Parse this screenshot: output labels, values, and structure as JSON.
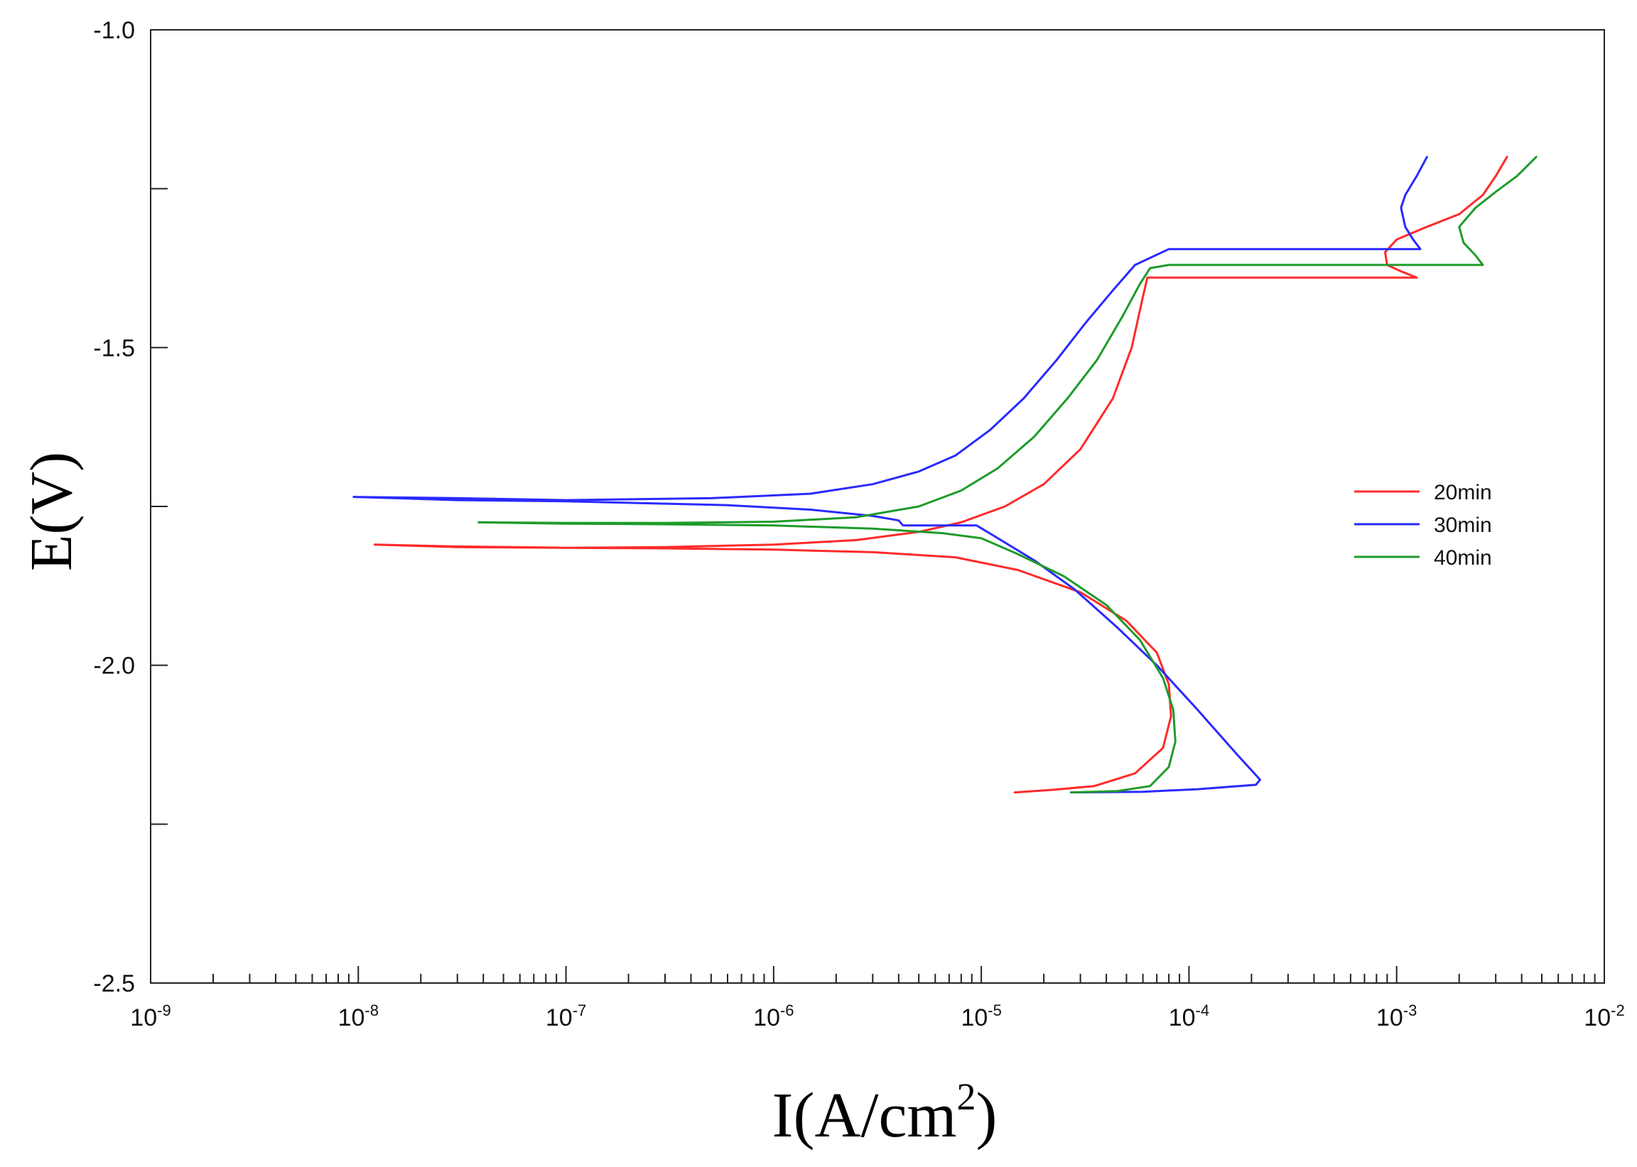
{
  "chart_data": {
    "type": "line",
    "xscale": "log",
    "xlim": [
      1e-09,
      0.01
    ],
    "ylim": [
      -2.5,
      -1.0
    ],
    "xlabel": {
      "main": "I(A/cm",
      "sup": "2",
      "close": ")"
    },
    "ylabel": "E(V)",
    "xticks": [
      {
        "value": 1e-09,
        "base": "10",
        "exp": "-9"
      },
      {
        "value": 1e-08,
        "base": "10",
        "exp": "-8"
      },
      {
        "value": 1e-07,
        "base": "10",
        "exp": "-7"
      },
      {
        "value": 1e-06,
        "base": "10",
        "exp": "-6"
      },
      {
        "value": 1e-05,
        "base": "10",
        "exp": "-5"
      },
      {
        "value": 0.0001,
        "base": "10",
        "exp": "-4"
      },
      {
        "value": 0.001,
        "base": "10",
        "exp": "-3"
      },
      {
        "value": 0.01,
        "base": "10",
        "exp": "-2"
      }
    ],
    "yticks": [
      {
        "value": -1.0,
        "label": "-1.0"
      },
      {
        "value": -1.25,
        "label": ""
      },
      {
        "value": -1.5,
        "label": "-1.5"
      },
      {
        "value": -1.75,
        "label": ""
      },
      {
        "value": -2.0,
        "label": "-2.0"
      },
      {
        "value": -2.25,
        "label": ""
      },
      {
        "value": -2.5,
        "label": "-2.5"
      }
    ],
    "grid": false,
    "legend_position": "right",
    "series": [
      {
        "name": "20min",
        "color": "#ff2a2a",
        "points": [
          [
            1.45e-05,
            -2.2
          ],
          [
            2.2e-05,
            -2.196
          ],
          [
            3.5e-05,
            -2.19
          ],
          [
            5.5e-05,
            -2.17
          ],
          [
            7.5e-05,
            -2.13
          ],
          [
            8.2e-05,
            -2.08
          ],
          [
            8e-05,
            -2.03
          ],
          [
            7e-05,
            -1.98
          ],
          [
            5e-05,
            -1.93
          ],
          [
            3e-05,
            -1.885
          ],
          [
            1.5e-05,
            -1.85
          ],
          [
            7.5e-06,
            -1.83
          ],
          [
            3e-06,
            -1.822
          ],
          [
            1e-06,
            -1.818
          ],
          [
            3e-07,
            -1.816
          ],
          [
            1e-07,
            -1.815
          ],
          [
            3e-08,
            -1.814
          ],
          [
            1.2e-08,
            -1.81
          ],
          [
            3e-08,
            -1.813
          ],
          [
            1e-07,
            -1.815
          ],
          [
            3e-07,
            -1.814
          ],
          [
            1e-06,
            -1.81
          ],
          [
            2.5e-06,
            -1.803
          ],
          [
            5e-06,
            -1.79
          ],
          [
            8e-06,
            -1.775
          ],
          [
            1.3e-05,
            -1.75
          ],
          [
            2e-05,
            -1.715
          ],
          [
            3e-05,
            -1.66
          ],
          [
            4.3e-05,
            -1.58
          ],
          [
            5.3e-05,
            -1.5
          ],
          [
            6e-05,
            -1.42
          ],
          [
            6.3e-05,
            -1.39
          ],
          [
            0.0001,
            -1.39
          ],
          [
            0.0003,
            -1.39
          ],
          [
            0.0007,
            -1.39
          ],
          [
            0.00125,
            -1.39
          ],
          [
            0.00105,
            -1.38
          ],
          [
            0.0009,
            -1.37
          ],
          [
            0.00088,
            -1.35
          ],
          [
            0.001,
            -1.33
          ],
          [
            0.0014,
            -1.31
          ],
          [
            0.002,
            -1.29
          ],
          [
            0.0026,
            -1.26
          ],
          [
            0.003,
            -1.23
          ],
          [
            0.0034,
            -1.2
          ]
        ]
      },
      {
        "name": "30min",
        "color": "#2a2aff",
        "points": [
          [
            2.8e-05,
            -2.2
          ],
          [
            6e-05,
            -2.199
          ],
          [
            0.00011,
            -2.195
          ],
          [
            0.00021,
            -2.188
          ],
          [
            0.00022,
            -2.18
          ],
          [
            0.00017,
            -2.14
          ],
          [
            0.00011,
            -2.07
          ],
          [
            7e-05,
            -2.0
          ],
          [
            4.5e-05,
            -1.94
          ],
          [
            2.8e-05,
            -1.88
          ],
          [
            1.8e-05,
            -1.835
          ],
          [
            1.2e-05,
            -1.8
          ],
          [
            9.5e-06,
            -1.78
          ],
          [
            6e-06,
            -1.78
          ],
          [
            4.2e-06,
            -1.78
          ],
          [
            4e-06,
            -1.772
          ],
          [
            3e-06,
            -1.765
          ],
          [
            1.5e-06,
            -1.755
          ],
          [
            6e-07,
            -1.748
          ],
          [
            1e-07,
            -1.742
          ],
          [
            3e-08,
            -1.74
          ],
          [
            9.5e-09,
            -1.735
          ],
          [
            3e-08,
            -1.737
          ],
          [
            1e-07,
            -1.74
          ],
          [
            5e-07,
            -1.737
          ],
          [
            1.5e-06,
            -1.73
          ],
          [
            3e-06,
            -1.715
          ],
          [
            5e-06,
            -1.695
          ],
          [
            7.5e-06,
            -1.67
          ],
          [
            1.1e-05,
            -1.63
          ],
          [
            1.6e-05,
            -1.58
          ],
          [
            2.3e-05,
            -1.52
          ],
          [
            3.2e-05,
            -1.46
          ],
          [
            4.3e-05,
            -1.41
          ],
          [
            5.5e-05,
            -1.37
          ],
          [
            8e-05,
            -1.345
          ],
          [
            0.0002,
            -1.345
          ],
          [
            0.0005,
            -1.345
          ],
          [
            0.0013,
            -1.345
          ],
          [
            0.0012,
            -1.33
          ],
          [
            0.0011,
            -1.31
          ],
          [
            0.00105,
            -1.28
          ],
          [
            0.0011,
            -1.26
          ],
          [
            0.00125,
            -1.23
          ],
          [
            0.0014,
            -1.2
          ]
        ]
      },
      {
        "name": "40min",
        "color": "#1e9b2a",
        "points": [
          [
            2.7e-05,
            -2.2
          ],
          [
            4.5e-05,
            -2.198
          ],
          [
            6.5e-05,
            -2.19
          ],
          [
            8e-05,
            -2.16
          ],
          [
            8.6e-05,
            -2.12
          ],
          [
            8.4e-05,
            -2.07
          ],
          [
            7.5e-05,
            -2.02
          ],
          [
            5.8e-05,
            -1.96
          ],
          [
            4e-05,
            -1.905
          ],
          [
            2.5e-05,
            -1.86
          ],
          [
            1.5e-05,
            -1.825
          ],
          [
            1e-05,
            -1.8
          ],
          [
            6.5e-06,
            -1.792
          ],
          [
            3e-06,
            -1.785
          ],
          [
            1e-06,
            -1.78
          ],
          [
            3e-07,
            -1.778
          ],
          [
            1e-07,
            -1.777
          ],
          [
            3.8e-08,
            -1.775
          ],
          [
            1e-07,
            -1.776
          ],
          [
            3e-07,
            -1.776
          ],
          [
            1e-06,
            -1.774
          ],
          [
            2.5e-06,
            -1.767
          ],
          [
            5e-06,
            -1.75
          ],
          [
            8e-06,
            -1.725
          ],
          [
            1.2e-05,
            -1.69
          ],
          [
            1.8e-05,
            -1.64
          ],
          [
            2.6e-05,
            -1.58
          ],
          [
            3.6e-05,
            -1.52
          ],
          [
            4.8e-05,
            -1.45
          ],
          [
            5.8e-05,
            -1.4
          ],
          [
            6.5e-05,
            -1.375
          ],
          [
            8e-05,
            -1.37
          ],
          [
            0.0002,
            -1.37
          ],
          [
            0.0008,
            -1.37
          ],
          [
            0.0026,
            -1.37
          ],
          [
            0.0024,
            -1.355
          ],
          [
            0.0021,
            -1.335
          ],
          [
            0.002,
            -1.31
          ],
          [
            0.0024,
            -1.28
          ],
          [
            0.003,
            -1.255
          ],
          [
            0.0038,
            -1.23
          ],
          [
            0.0047,
            -1.2
          ]
        ]
      }
    ]
  }
}
